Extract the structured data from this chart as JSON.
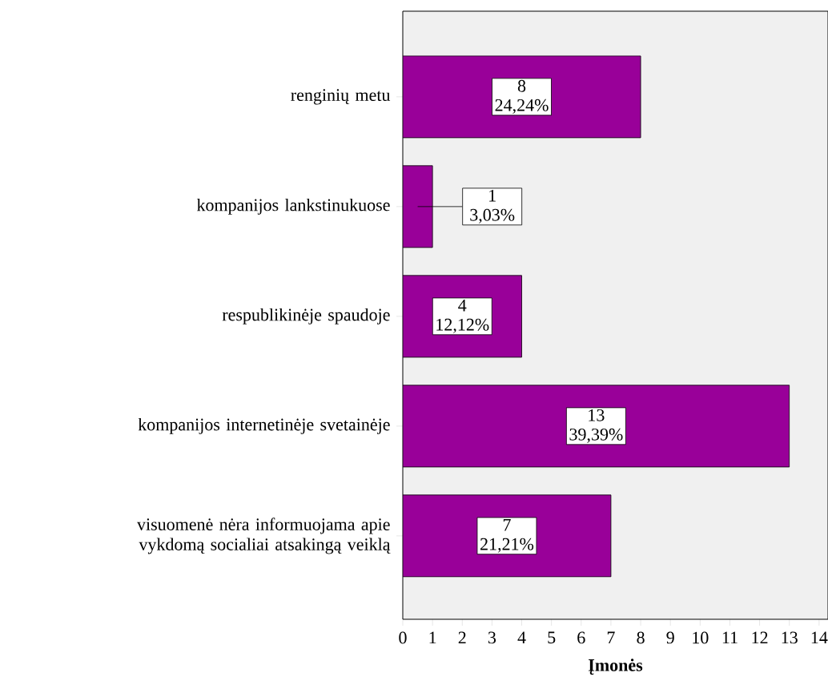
{
  "chart_data": {
    "type": "bar",
    "orientation": "horizontal",
    "xlabel": "Įmonės",
    "categories": [
      "renginių metu",
      "kompanijos lankstinukuose",
      "respublikinėje spaudoje",
      "kompanijos internetinėje svetainėje",
      "visuomenė nėra informuojama apie vykdomą socialiai atsakingą veiklą"
    ],
    "values": [
      8,
      1,
      4,
      13,
      7
    ],
    "value_labels": [
      "8 24,24%",
      "1 3,03%",
      "4 12,12%",
      "13 39,39%",
      "7 21,21%"
    ],
    "color": "#990099",
    "xlim": [
      0,
      14.3
    ],
    "xticks": [
      0,
      1,
      2,
      3,
      4,
      5,
      6,
      7,
      8,
      9,
      10,
      11,
      12,
      13,
      14
    ],
    "grid": false
  }
}
